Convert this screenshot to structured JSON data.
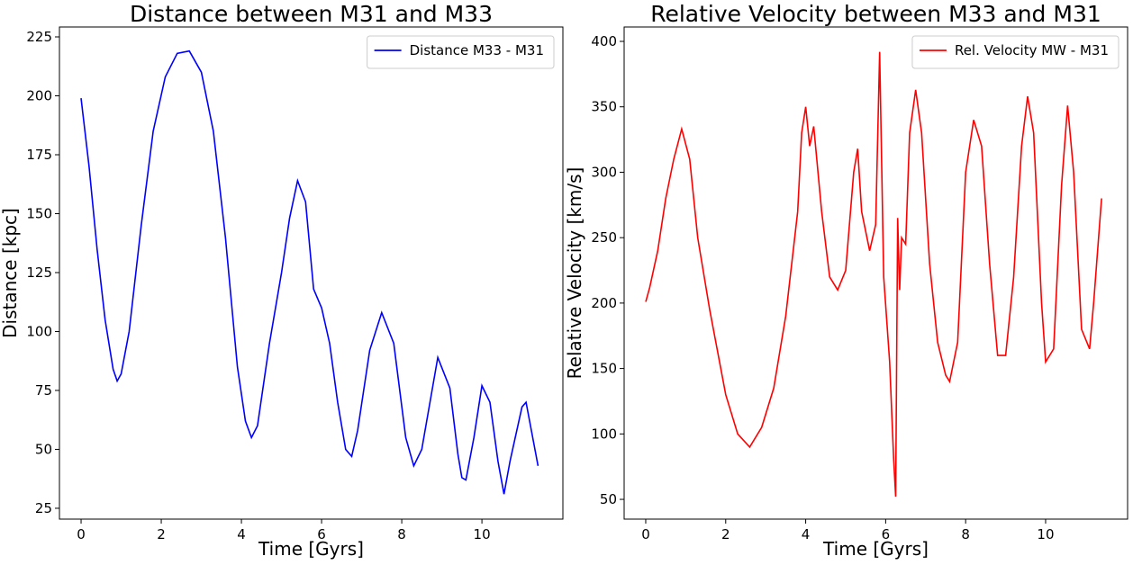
{
  "chart_data": [
    {
      "type": "line",
      "title": "Distance between M31 and M33",
      "xlabel": "Time [Gyrs]",
      "ylabel": "Distance [kpc]",
      "x": [
        0,
        0.2,
        0.4,
        0.6,
        0.8,
        0.9,
        1.0,
        1.2,
        1.5,
        1.8,
        2.1,
        2.4,
        2.7,
        3.0,
        3.3,
        3.6,
        3.9,
        4.1,
        4.25,
        4.4,
        4.7,
        5.0,
        5.2,
        5.4,
        5.6,
        5.8,
        6.0,
        6.2,
        6.4,
        6.6,
        6.75,
        6.9,
        7.2,
        7.5,
        7.8,
        8.1,
        8.3,
        8.5,
        8.9,
        9.2,
        9.4,
        9.5,
        9.6,
        9.8,
        10.0,
        10.2,
        10.4,
        10.55,
        10.7,
        11.0,
        11.1,
        11.4
      ],
      "series": [
        {
          "name": "Distance M33 - M31",
          "color": "#0000ff",
          "values": [
            199,
            170,
            135,
            105,
            84,
            79,
            82,
            100,
            145,
            185,
            208,
            218,
            219,
            210,
            185,
            140,
            85,
            62,
            55,
            60,
            95,
            125,
            148,
            164,
            155,
            118,
            110,
            95,
            70,
            50,
            47,
            58,
            92,
            108,
            95,
            55,
            43,
            50,
            89,
            76,
            48,
            38,
            37,
            55,
            77,
            70,
            45,
            31,
            45,
            68,
            70,
            43
          ]
        }
      ],
      "xlim": [
        -0.54,
        12.02
      ],
      "ylim": [
        20.4,
        229.2
      ],
      "xticks": [
        0,
        2,
        4,
        6,
        8,
        10
      ],
      "yticks": [
        25,
        50,
        75,
        100,
        125,
        150,
        175,
        200,
        225
      ],
      "legend": "upper right"
    },
    {
      "type": "line",
      "title": "Relative Velocity between M33 and M31",
      "xlabel": "Time [Gyrs]",
      "ylabel": "Relative Velocity [km/s]",
      "x": [
        0,
        0.1,
        0.3,
        0.5,
        0.7,
        0.9,
        1.1,
        1.3,
        1.6,
        2.0,
        2.3,
        2.6,
        2.9,
        3.2,
        3.5,
        3.8,
        3.9,
        4.0,
        4.1,
        4.2,
        4.4,
        4.6,
        4.8,
        5.0,
        5.2,
        5.3,
        5.4,
        5.6,
        5.75,
        5.85,
        5.95,
        6.1,
        6.2,
        6.25,
        6.3,
        6.35,
        6.4,
        6.5,
        6.6,
        6.75,
        6.9,
        7.1,
        7.3,
        7.5,
        7.6,
        7.8,
        8.0,
        8.2,
        8.4,
        8.6,
        8.8,
        9.0,
        9.2,
        9.4,
        9.55,
        9.7,
        9.9,
        10.0,
        10.2,
        10.4,
        10.55,
        10.7,
        10.9,
        11.1,
        11.2,
        11.4
      ],
      "series": [
        {
          "name": "Rel. Velocity MW - M31",
          "color": "#ff0000",
          "values": [
            201,
            212,
            240,
            280,
            310,
            333,
            310,
            250,
            195,
            130,
            100,
            90,
            105,
            135,
            190,
            270,
            330,
            350,
            320,
            335,
            270,
            220,
            210,
            225,
            300,
            318,
            270,
            240,
            260,
            392,
            220,
            155,
            80,
            52,
            265,
            210,
            250,
            245,
            330,
            363,
            330,
            230,
            170,
            145,
            140,
            170,
            300,
            340,
            320,
            230,
            160,
            160,
            220,
            320,
            358,
            330,
            200,
            155,
            165,
            290,
            351,
            300,
            180,
            165,
            200,
            280
          ]
        }
      ],
      "xlim": [
        -0.54,
        12.05
      ],
      "ylim": [
        34.9,
        411
      ],
      "xticks": [
        0,
        2,
        4,
        6,
        8,
        10
      ],
      "yticks": [
        50,
        100,
        150,
        200,
        250,
        300,
        350,
        400
      ],
      "legend": "upper right"
    }
  ]
}
